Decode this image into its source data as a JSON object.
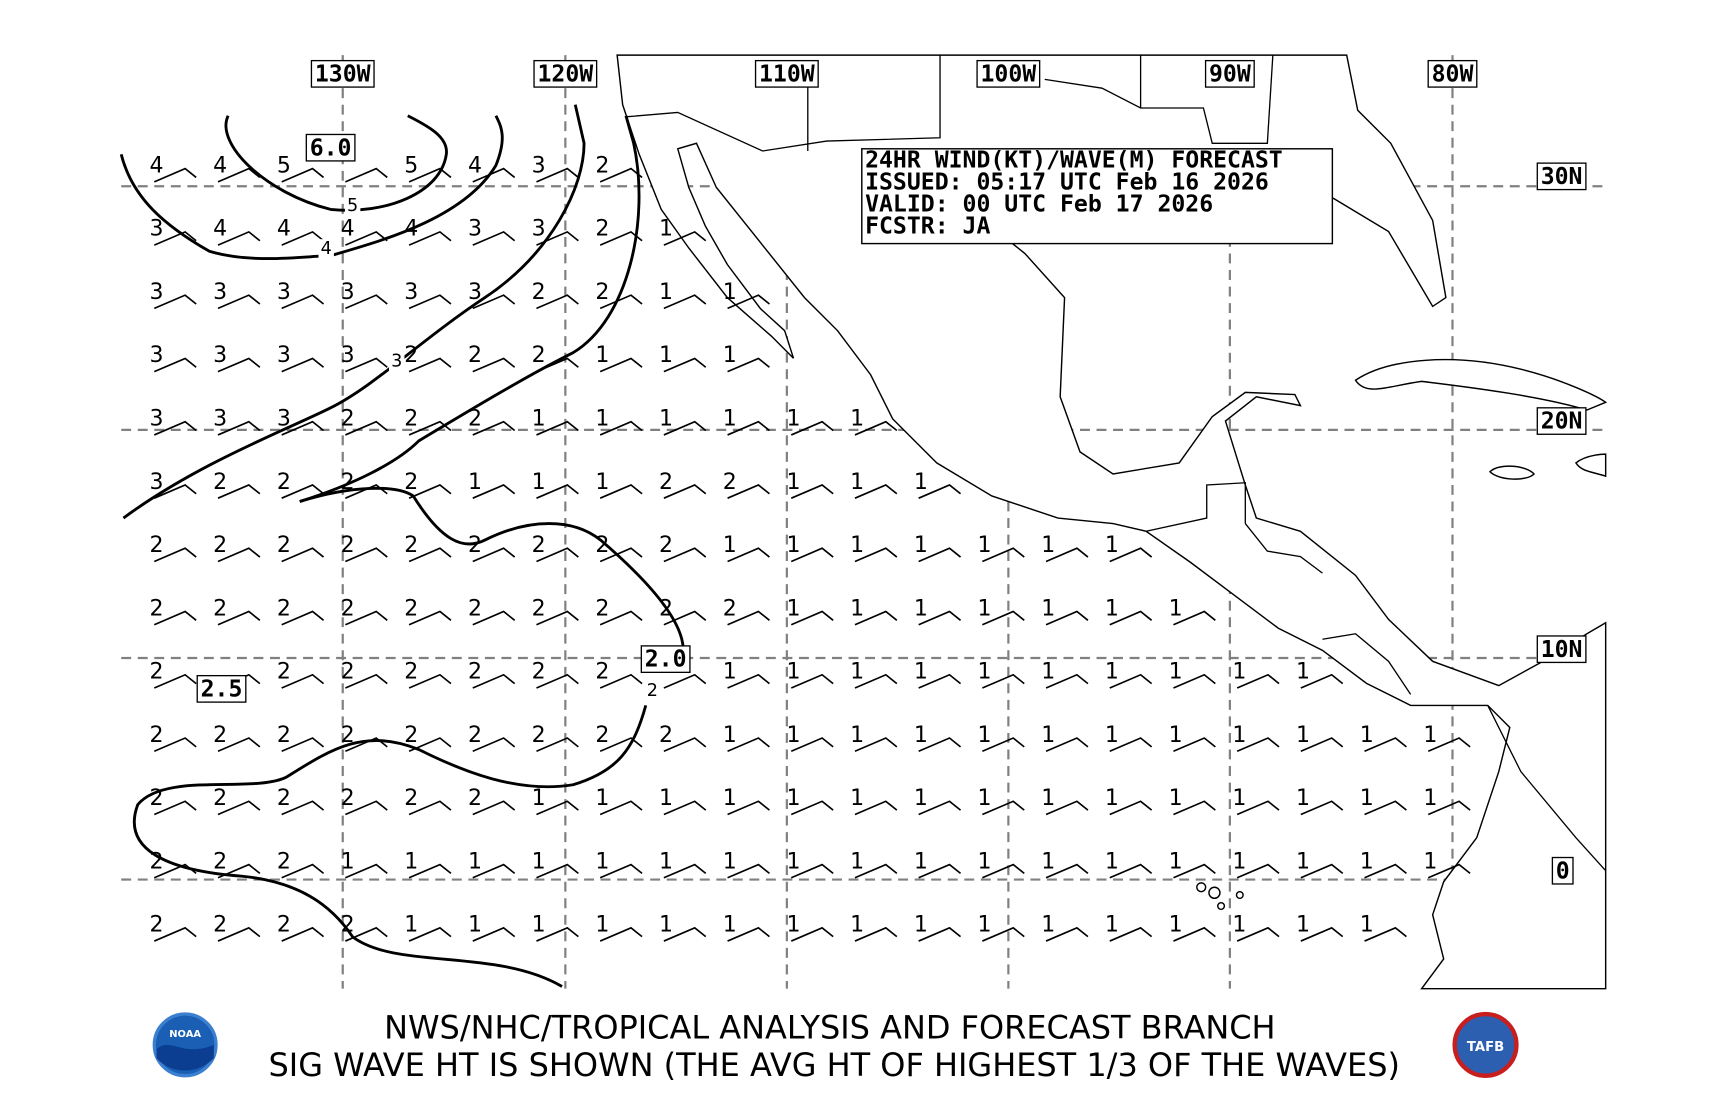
{
  "map": {
    "lon_labels": [
      "130W",
      "120W",
      "110W",
      "100W",
      "90W",
      "80W"
    ],
    "lat_labels": [
      "30N",
      "20N",
      "10N"
    ],
    "info_box": [
      "24HR WIND(KT)/WAVE(M) FORECAST",
      "ISSUED: 05:17 UTC Feb 16 2026",
      "VALID: 00 UTC Feb 17 2026",
      "FCSTR: JA"
    ],
    "contour_boxes": [
      "6.0",
      "2.5",
      "2.0",
      "0"
    ],
    "contour_ticks": [
      "5",
      "4",
      "3",
      "2"
    ],
    "wave_heights": [
      [
        4,
        4,
        5,
        null,
        5,
        4,
        3,
        2
      ],
      [
        3,
        4,
        4,
        4,
        4,
        3,
        3,
        2,
        1
      ],
      [
        3,
        3,
        3,
        3,
        3,
        3,
        2,
        2,
        1,
        1
      ],
      [
        3,
        3,
        3,
        3,
        2,
        2,
        2,
        1,
        1,
        1
      ],
      [
        3,
        3,
        3,
        2,
        2,
        2,
        1,
        1,
        1,
        1,
        1,
        1
      ],
      [
        3,
        2,
        2,
        2,
        2,
        1,
        1,
        1,
        2,
        2,
        1,
        1,
        1
      ],
      [
        2,
        2,
        2,
        2,
        2,
        2,
        2,
        2,
        2,
        1,
        1,
        1,
        1,
        1,
        1,
        1
      ],
      [
        2,
        2,
        2,
        2,
        2,
        2,
        2,
        2,
        2,
        2,
        1,
        1,
        1,
        1,
        1,
        1,
        1
      ],
      [
        2,
        null,
        2,
        2,
        2,
        2,
        2,
        2,
        null,
        1,
        1,
        1,
        1,
        1,
        1,
        1,
        1,
        1,
        1
      ],
      [
        2,
        2,
        2,
        2,
        2,
        2,
        2,
        2,
        2,
        1,
        1,
        1,
        1,
        1,
        1,
        1,
        1,
        1,
        1,
        1,
        1
      ],
      [
        2,
        2,
        2,
        2,
        2,
        2,
        1,
        1,
        1,
        1,
        1,
        1,
        1,
        1,
        1,
        1,
        1,
        1,
        1,
        1,
        1
      ],
      [
        2,
        2,
        2,
        1,
        1,
        1,
        1,
        1,
        1,
        1,
        1,
        1,
        1,
        1,
        1,
        1,
        1,
        1,
        1,
        1,
        1
      ],
      [
        2,
        2,
        2,
        2,
        1,
        1,
        1,
        1,
        1,
        1,
        1,
        1,
        1,
        1,
        1,
        1,
        1,
        1,
        1,
        1
      ]
    ]
  },
  "footer": [
    "NWS/NHC/TROPICAL ANALYSIS AND FORECAST BRANCH",
    "SIG WAVE HT IS SHOWN (THE AVG HT OF HIGHEST 1/3 OF THE WAVES)"
  ],
  "logos": [
    "NOAA",
    "TAFB"
  ]
}
